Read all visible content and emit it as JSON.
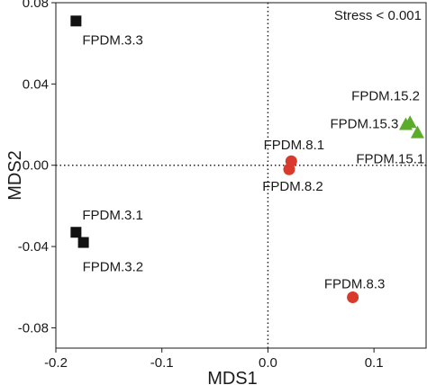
{
  "chart_data": {
    "type": "scatter",
    "xlabel": "MDS1",
    "ylabel": "MDS2",
    "annotation": "Stress < 0.001",
    "xlim": [
      -0.2,
      0.15
    ],
    "ylim": [
      -0.09,
      0.08
    ],
    "x_ticks": [
      {
        "value": -0.2,
        "label": "-0.2"
      },
      {
        "value": -0.1,
        "label": "-0.1"
      },
      {
        "value": 0.0,
        "label": "0.0"
      },
      {
        "value": 0.1,
        "label": "0.1"
      }
    ],
    "y_ticks": [
      {
        "value": 0.08,
        "label": "0.08"
      },
      {
        "value": 0.04,
        "label": "0.04"
      },
      {
        "value": 0.0,
        "label": "0.00"
      },
      {
        "value": -0.04,
        "label": "-0.04"
      },
      {
        "value": -0.08,
        "label": "-0.08"
      }
    ],
    "reference_lines": {
      "x": 0,
      "y": 0,
      "style": "dotted"
    },
    "grid": false,
    "series": [
      {
        "marker": "square",
        "color": "#111111",
        "points": [
          {
            "label": "FPDM.3.3",
            "x": -0.181,
            "y": 0.071
          },
          {
            "label": "FPDM.3.1",
            "x": -0.181,
            "y": -0.033
          },
          {
            "label": "FPDM.3.2",
            "x": -0.174,
            "y": -0.038
          }
        ]
      },
      {
        "marker": "circle",
        "color": "#d93a2b",
        "points": [
          {
            "label": "FPDM.8.1",
            "x": 0.022,
            "y": 0.002
          },
          {
            "label": "FPDM.8.2",
            "x": 0.02,
            "y": -0.002
          },
          {
            "label": "FPDM.8.3",
            "x": 0.08,
            "y": -0.065
          }
        ]
      },
      {
        "marker": "triangle",
        "color": "#5aac2a",
        "points": [
          {
            "label": "FPDM.15.2",
            "x": 0.134,
            "y": 0.021
          },
          {
            "label": "FPDM.15.3",
            "x": 0.13,
            "y": 0.02
          },
          {
            "label": "FPDM.15.1",
            "x": 0.141,
            "y": 0.016
          }
        ]
      }
    ]
  }
}
